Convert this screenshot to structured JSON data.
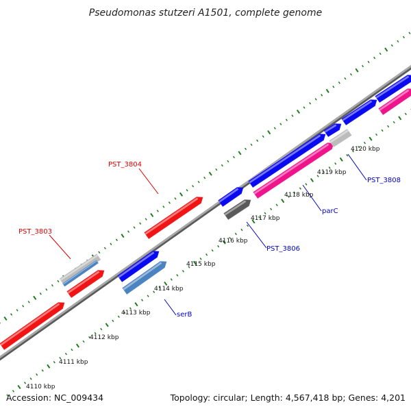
{
  "title": "Pseudomonas stutzeri A1501, complete genome",
  "footer": {
    "accession": "Accession: NC_009434",
    "summary": "Topology: circular; Length: 4,567,418 bp; Genes: 4,201"
  },
  "colors": {
    "backbone": "#8c8c8c",
    "tick": "#1f7a1f",
    "red": "#f01414",
    "blue": "#0a0af0",
    "steelblue": "#4b82c0",
    "pink": "#f0148c",
    "gray": "#bcbcbc",
    "darkgray": "#5a5a5a",
    "label_red": "#e00000",
    "label_blue": "#0000cc"
  },
  "tick_labels": [
    "4110 kbp",
    "4111 kbp",
    "4112 kbp",
    "4113 kbp",
    "4114 kbp",
    "4115 kbp",
    "4116 kbp",
    "4117 kbp",
    "4118 kbp",
    "4119 kbp",
    "4120 kbp"
  ],
  "genes": [
    {
      "name": "gene-red-1",
      "color": "red"
    },
    {
      "name": "gene-red-2",
      "color": "red"
    },
    {
      "name": "gene-red-3",
      "color": "red"
    },
    {
      "name": "gene-gray-top",
      "color": "gray"
    },
    {
      "name": "gene-blue-1",
      "color": "blue"
    },
    {
      "name": "gene-blue-2",
      "color": "blue"
    },
    {
      "name": "gene-blue-3",
      "color": "blue"
    },
    {
      "name": "gene-blue-4",
      "color": "blue"
    },
    {
      "name": "gene-blue-5",
      "color": "blue"
    },
    {
      "name": "gene-blue-6",
      "color": "blue"
    },
    {
      "name": "gene-steelblue-1",
      "color": "steelblue"
    },
    {
      "name": "gene-steelblue-2",
      "color": "steelblue"
    },
    {
      "name": "gene-darkgray",
      "color": "darkgray"
    },
    {
      "name": "gene-pink-1",
      "color": "pink"
    },
    {
      "name": "gene-pink-2",
      "color": "pink"
    },
    {
      "name": "gene-gray-small",
      "color": "gray"
    }
  ],
  "gene_labels": [
    {
      "text": "PST_3803",
      "color": "red"
    },
    {
      "text": "PST_3804",
      "color": "red"
    },
    {
      "text": "serB",
      "color": "blue"
    },
    {
      "text": "PST_3806",
      "color": "blue"
    },
    {
      "text": "parC",
      "color": "blue"
    },
    {
      "text": "PST_3808",
      "color": "blue"
    }
  ]
}
